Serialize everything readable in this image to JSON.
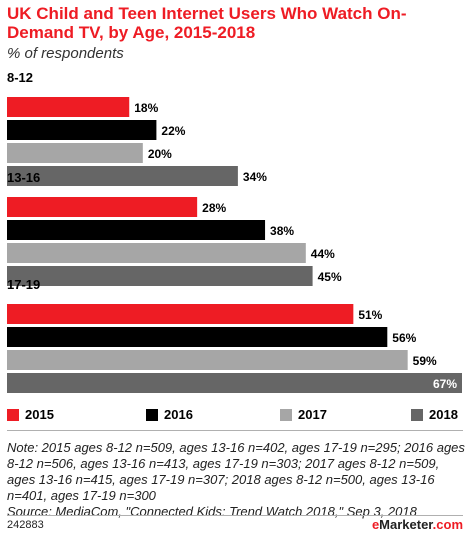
{
  "header": {
    "title": "UK Child and Teen Internet Users Who Watch On-Demand TV, by Age, 2015-2018",
    "subtitle": "% of respondents"
  },
  "colors": {
    "2015": "#ee1c24",
    "2016": "#000000",
    "2017": "#a6a6a6",
    "2018": "#666666"
  },
  "chart_data": {
    "type": "bar",
    "orientation": "horizontal",
    "title": "UK Child and Teen Internet Users Who Watch On-Demand TV, by Age, 2015-2018",
    "subtitle": "% of respondents",
    "categories": [
      "8-12",
      "13-16",
      "17-19"
    ],
    "series": [
      {
        "name": "2015",
        "values": [
          18,
          28,
          51
        ],
        "labels": [
          "18%",
          "28%",
          "51%"
        ]
      },
      {
        "name": "2016",
        "values": [
          22,
          38,
          56
        ],
        "labels": [
          "22%",
          "38%",
          "56%"
        ]
      },
      {
        "name": "2017",
        "values": [
          20,
          44,
          59
        ],
        "labels": [
          "20%",
          "44%",
          "59%"
        ]
      },
      {
        "name": "2018",
        "values": [
          34,
          45,
          67
        ],
        "labels": [
          "34%",
          "45%",
          "67%"
        ]
      }
    ],
    "xlim": [
      0,
      67
    ],
    "grid": false,
    "legend": "bottom"
  },
  "legend": {
    "items": [
      {
        "label": "2015"
      },
      {
        "label": "2016"
      },
      {
        "label": "2017"
      },
      {
        "label": "2018"
      }
    ]
  },
  "note": "Note: 2015 ages 8-12 n=509, ages 13-16 n=402, ages 17-19 n=295; 2016 ages 8-12 n=506, ages 13-16 n=413, ages 17-19 n=303; 2017 ages 8-12 n=509, ages 13-16 n=415, ages 17-19 n=307; 2018 ages 8-12 n=500, ages 13-16 n=401, ages 17-19 n=300",
  "source": "Source: MediaCom, \"Connected Kids: Trend Watch 2018,\" Sep 3, 2018",
  "footer": {
    "id": "242883",
    "brand_prefix": "e",
    "brand_rest": "Marketer",
    "brand_suffix": ".com"
  }
}
